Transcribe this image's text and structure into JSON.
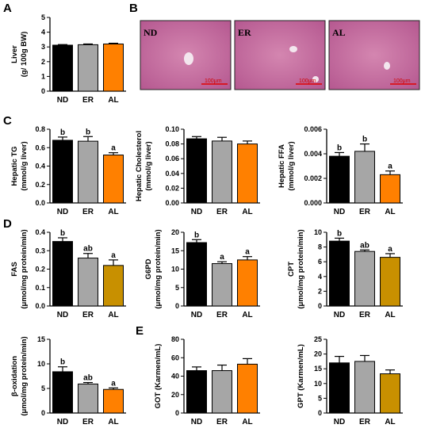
{
  "panel_letters": [
    "A",
    "B",
    "C",
    "D",
    "E"
  ],
  "colors": {
    "ND": "#000000",
    "ER": "#a6a6a6",
    "AL": "#ff8000",
    "AL_alt": "#c89000",
    "scale_bar": "#e00000",
    "tissue": "#c86a9e"
  },
  "histology": {
    "panels": [
      {
        "label": "ND",
        "scale": "100μm"
      },
      {
        "label": "ER",
        "scale": "100μm"
      },
      {
        "label": "AL",
        "scale": "100μm"
      }
    ]
  },
  "chart_data": [
    {
      "id": "liver",
      "type": "bar",
      "panel": "A",
      "ylabel": [
        "Liver",
        "(g/ 100g BW)"
      ],
      "categories": [
        "ND",
        "ER",
        "AL"
      ],
      "values": [
        3.12,
        3.15,
        3.2
      ],
      "errors": [
        0.04,
        0.05,
        0.05
      ],
      "sig": [
        "",
        "",
        ""
      ],
      "ylim": [
        0,
        5
      ],
      "yticks": [
        "0",
        "1",
        "2",
        "3",
        "4",
        "5"
      ],
      "ytick_vals": [
        0,
        1,
        2,
        3,
        4,
        5
      ]
    },
    {
      "id": "tg",
      "type": "bar",
      "panel": "C",
      "ylabel": [
        "Hepatic TG",
        "(mmol/g liver)"
      ],
      "categories": [
        "ND",
        "ER",
        "AL"
      ],
      "values": [
        0.68,
        0.67,
        0.52
      ],
      "errors": [
        0.035,
        0.05,
        0.025
      ],
      "sig": [
        "b",
        "b",
        "a"
      ],
      "ylim": [
        0,
        0.8
      ],
      "yticks": [
        "0.0",
        "0.2",
        "0.4",
        "0.6",
        "0.8"
      ],
      "ytick_vals": [
        0,
        0.2,
        0.4,
        0.6,
        0.8
      ]
    },
    {
      "id": "chol",
      "type": "bar",
      "panel": "",
      "ylabel": [
        "Hepatic Cholesterol",
        "(mmol/g liver)"
      ],
      "categories": [
        "ND",
        "ER",
        "AL"
      ],
      "values": [
        0.087,
        0.084,
        0.08
      ],
      "errors": [
        0.003,
        0.005,
        0.004
      ],
      "sig": [
        "",
        "",
        ""
      ],
      "ylim": [
        0,
        0.1
      ],
      "yticks": [
        "0.00",
        "0.02",
        "0.04",
        "0.06",
        "0.08",
        "0.10"
      ],
      "ytick_vals": [
        0,
        0.02,
        0.04,
        0.06,
        0.08,
        0.1
      ]
    },
    {
      "id": "ffa",
      "type": "bar",
      "panel": "",
      "ylabel": [
        "Hepatic FFA",
        "(mmol/g liver)"
      ],
      "categories": [
        "ND",
        "ER",
        "AL"
      ],
      "values": [
        0.0038,
        0.0042,
        0.0023
      ],
      "errors": [
        0.0003,
        0.0006,
        0.0003
      ],
      "sig": [
        "b",
        "b",
        "a"
      ],
      "ylim": [
        0,
        0.006
      ],
      "yticks": [
        "0.000",
        "0.002",
        "0.004",
        "0.006"
      ],
      "ytick_vals": [
        0,
        0.002,
        0.004,
        0.006
      ]
    },
    {
      "id": "fas",
      "type": "bar",
      "panel": "D",
      "ylabel": [
        "FAS",
        "(μmol/mg protein/min)"
      ],
      "categories": [
        "ND",
        "ER",
        "AL"
      ],
      "values": [
        0.35,
        0.26,
        0.22
      ],
      "errors": [
        0.02,
        0.025,
        0.03
      ],
      "sig": [
        "b",
        "ab",
        "a"
      ],
      "ylim": [
        0,
        0.4
      ],
      "yticks": [
        "0.0",
        "0.1",
        "0.2",
        "0.3",
        "0.4"
      ],
      "ytick_vals": [
        0,
        0.1,
        0.2,
        0.3,
        0.4
      ]
    },
    {
      "id": "g6pd",
      "type": "bar",
      "panel": "",
      "ylabel": [
        "G6PD",
        "(μmol/mg protein/min)"
      ],
      "categories": [
        "ND",
        "ER",
        "AL"
      ],
      "values": [
        17.2,
        11.5,
        12.5
      ],
      "errors": [
        0.8,
        0.5,
        0.9
      ],
      "sig": [
        "b",
        "a",
        "a"
      ],
      "ylim": [
        0,
        20
      ],
      "yticks": [
        "0",
        "5",
        "10",
        "15",
        "20"
      ],
      "ytick_vals": [
        0,
        5,
        10,
        15,
        20
      ]
    },
    {
      "id": "cpt",
      "type": "bar",
      "panel": "",
      "ylabel": [
        "CPT",
        "(μmol/mg protein/min)"
      ],
      "categories": [
        "ND",
        "ER",
        "AL"
      ],
      "values": [
        8.8,
        7.4,
        6.6
      ],
      "errors": [
        0.4,
        0.2,
        0.5
      ],
      "sig": [
        "b",
        "ab",
        "a"
      ],
      "ylim": [
        0,
        10
      ],
      "yticks": [
        "0",
        "2",
        "4",
        "6",
        "8",
        "10"
      ],
      "ytick_vals": [
        0,
        2,
        4,
        6,
        8,
        10
      ]
    },
    {
      "id": "boxid",
      "type": "bar",
      "panel": "",
      "ylabel": [
        "β-oxidation",
        "(μmol/mg protein/min)"
      ],
      "categories": [
        "ND",
        "ER",
        "AL"
      ],
      "values": [
        8.4,
        5.9,
        4.8
      ],
      "errors": [
        1.0,
        0.3,
        0.3
      ],
      "sig": [
        "b",
        "ab",
        "a"
      ],
      "ylim": [
        0,
        15
      ],
      "yticks": [
        "0",
        "5",
        "10",
        "15"
      ],
      "ytick_vals": [
        0,
        5,
        10,
        15
      ]
    },
    {
      "id": "got",
      "type": "bar",
      "panel": "E",
      "ylabel": [
        "GOT (Karmen/mL)"
      ],
      "categories": [
        "ND",
        "ER",
        "AL"
      ],
      "values": [
        46,
        46,
        53
      ],
      "errors": [
        4,
        6,
        6
      ],
      "sig": [
        "",
        "",
        ""
      ],
      "ylim": [
        0,
        80
      ],
      "yticks": [
        "0",
        "20",
        "40",
        "60",
        "80"
      ],
      "ytick_vals": [
        0,
        20,
        40,
        60,
        80
      ]
    },
    {
      "id": "gpt",
      "type": "bar",
      "panel": "",
      "ylabel": [
        "GPT (Karmen/mL)"
      ],
      "categories": [
        "ND",
        "ER",
        "AL"
      ],
      "values": [
        17,
        17.5,
        13.3
      ],
      "errors": [
        2.2,
        2,
        1.3
      ],
      "sig": [
        "",
        "",
        ""
      ],
      "ylim": [
        0,
        25
      ],
      "yticks": [
        "0",
        "5",
        "10",
        "15",
        "20",
        "25"
      ],
      "ytick_vals": [
        0,
        5,
        10,
        15,
        20,
        25
      ]
    }
  ]
}
